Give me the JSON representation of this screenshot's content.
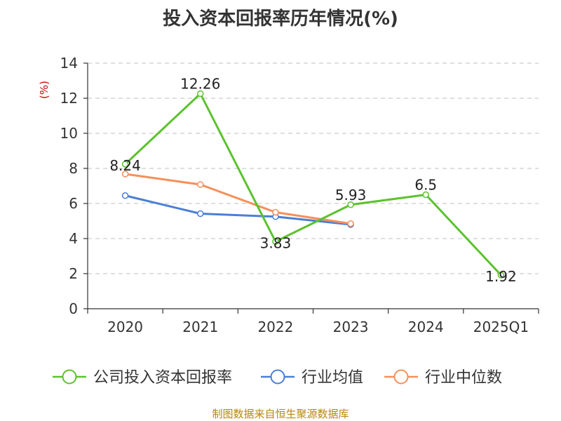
{
  "chart_data": {
    "type": "line",
    "title": "投入资本回报率历年情况(%)",
    "ylabel": "(%)",
    "xlabel": "",
    "categories": [
      "2020",
      "2021",
      "2022",
      "2023",
      "2024",
      "2025Q1"
    ],
    "ylim": [
      0,
      14
    ],
    "yticks": [
      0,
      2,
      4,
      6,
      8,
      10,
      12,
      14
    ],
    "grid": true,
    "legend_position": "bottom",
    "series": [
      {
        "name": "公司投入资本回报率",
        "color": "#5cc22e",
        "values": [
          8.24,
          12.26,
          3.83,
          5.93,
          6.5,
          1.92
        ],
        "labels": [
          "8.24",
          "12.26",
          "3.83",
          "5.93",
          "6.5",
          "1.92"
        ]
      },
      {
        "name": "行业均值",
        "color": "#4a7fd6",
        "values": [
          6.45,
          5.42,
          5.25,
          4.8,
          null,
          null
        ]
      },
      {
        "name": "行业中位数",
        "color": "#f5905a",
        "values": [
          7.68,
          7.08,
          5.5,
          4.85,
          null,
          null
        ]
      }
    ]
  },
  "footer": {
    "source": "制图数据来自恒生聚源数据库"
  }
}
